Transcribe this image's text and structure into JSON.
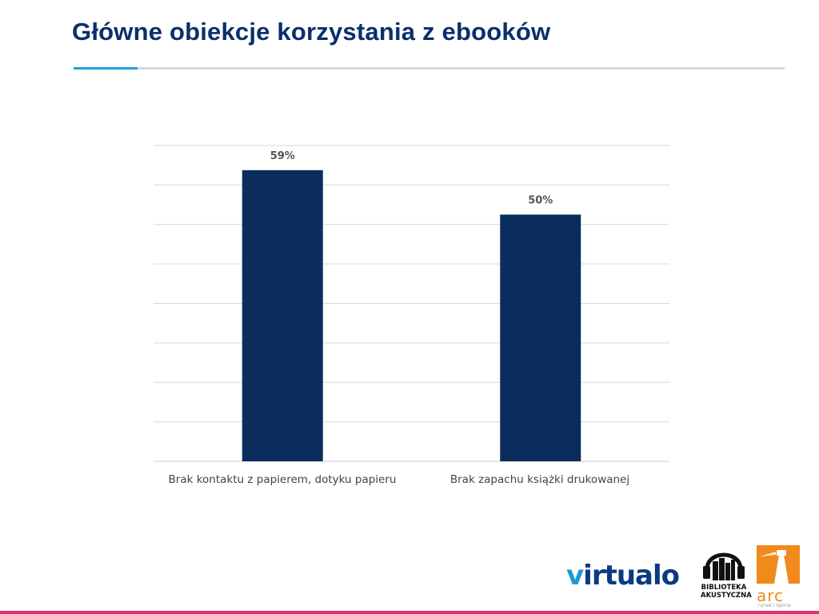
{
  "page": {
    "title": "Główne obiekcje korzystania z ebooków"
  },
  "chart_data": {
    "type": "bar",
    "categories": [
      "Brak kontaktu z papierem, dotyku papieru",
      "Brak zapachu książki drukowanej"
    ],
    "values": [
      59,
      50
    ],
    "value_labels": [
      "59%",
      "50%"
    ],
    "title": "",
    "xlabel": "",
    "ylabel": "",
    "ylim": [
      0,
      64
    ],
    "grid": true,
    "bar_color": "#0b2d5e"
  },
  "logos": {
    "virtualo": {
      "v": "v",
      "rest": "irtualo"
    },
    "biblioteka_line1": "BIBLIOTEKA",
    "biblioteka_line2": "AKUSTYCZNA",
    "arc": "arc",
    "arc_sub": "rynek i opinia"
  },
  "colors": {
    "title": "#0b2f6b",
    "accent": "#1ea3d6",
    "bottom_band": "#e0316f",
    "arc_orange": "#f08a1c"
  }
}
